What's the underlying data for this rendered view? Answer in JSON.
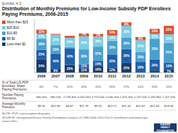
{
  "chart_data": {
    "type": "bar",
    "stacked": true,
    "subtitle": "Exhibit 4.3",
    "title": "Distribution of Monthly Premiums for Low-Income Subsidy PDP Enrollees Paying Premiums, 2006-2015",
    "categories": [
      "2006",
      "2007",
      "2008",
      "2009",
      "2010",
      "2011",
      "2012",
      "2013",
      "2014",
      "2015"
    ],
    "series": [
      {
        "name": "Less than $2",
        "color": "#1a3a6c",
        "values": [
          34,
          9,
          20,
          11,
          16,
          12,
          25,
          0,
          5,
          7
        ],
        "value_labels": [
          "34%",
          "9%",
          "20%",
          "11%",
          "16%",
          "12%",
          "25%",
          null,
          null,
          "7%"
        ]
      },
      {
        "name": "$5-$2",
        "color": "#1f60aa",
        "values": [
          25,
          40,
          42,
          11,
          14,
          35,
          36,
          28,
          29,
          19
        ],
        "value_labels": [
          "25%",
          "40%",
          "42%",
          "11%",
          "14%",
          "35%",
          "36%",
          "28%",
          "29%",
          "19%"
        ]
      },
      {
        "name": "$10-$5",
        "color": "#4a9fce",
        "values": [
          28,
          22,
          4,
          38,
          37,
          35,
          30,
          25,
          53,
          51
        ],
        "value_labels": [
          "28%",
          "22%",
          null,
          "38%",
          "37%",
          "35%",
          "30%",
          "25%",
          "53%",
          "51%"
        ]
      },
      {
        "name": "$25-$10",
        "color": "#7dcce3",
        "values": [
          13,
          27,
          24,
          34,
          26,
          14,
          30,
          31,
          13,
          22
        ],
        "value_labels": [
          "13%",
          "27%",
          "24%",
          "34%",
          "26%",
          "14%",
          "30%",
          "31%",
          "13%",
          "22%"
        ]
      },
      {
        "name": "More than $25",
        "color": "#d9502e",
        "values": [
          11,
          2,
          5,
          7,
          7,
          14,
          9,
          8,
          13,
          22
        ],
        "value_labels": [
          "11%",
          null,
          null,
          "7%",
          "7%",
          "14%",
          "9%",
          "8%",
          "13%",
          "22%"
        ]
      }
    ],
    "ylim": [
      0,
      138
    ],
    "tick_labels": "x",
    "grid": false,
    "legend": "upper left",
    "data_labels": true,
    "table": {
      "rows": [
        {
          "label": "% of Total LIS PDP Enrollees, Share Paying Premiums:",
          "values": [
            6,
            7,
            22,
            20,
            22,
            23,
            17,
            12,
            20,
            15
          ],
          "value_labels": [
            "6%",
            "7%",
            "22%",
            "20%",
            "22%",
            "23%",
            "17%",
            "12%",
            "20%",
            "15%"
          ]
        },
        {
          "label": "Number Paying Premiums:",
          "values": [
            480000,
            580100,
            2718400,
            2042500,
            1772000,
            2040100,
            1411000,
            1107500,
            1292900,
            1117200
          ],
          "value_labels": [
            "480,000",
            "580,100",
            "2,718,400",
            "2,042,500",
            "1,772,000",
            "2,040,100",
            "1,411,000",
            "1,107,500",
            "1,292,900",
            "1,117,200"
          ]
        },
        {
          "label": "Average Monthly Premium:",
          "values": [
            9.35,
            22.69,
            6.87,
            11.78,
            9.35,
            14.71,
            12.45,
            11.82,
            21.83,
            18.9
          ],
          "value_labels": [
            "$9.35",
            "$22.69",
            "$6.87",
            "$11.78",
            "$9.35",
            "$14.71",
            "$12.45",
            "$11.82",
            "$21.83",
            "$18.90"
          ]
        }
      ]
    },
    "annotations": [
      "NOTE: PDP is prescription drug plan.",
      "SOURCE: Georgetown/Kaiser Family Foundation analysis of CMS 2006-2015 Part D enrollment and landscape source files.",
      "KAISER\nFAMILY\nFOUNDATION"
    ]
  }
}
